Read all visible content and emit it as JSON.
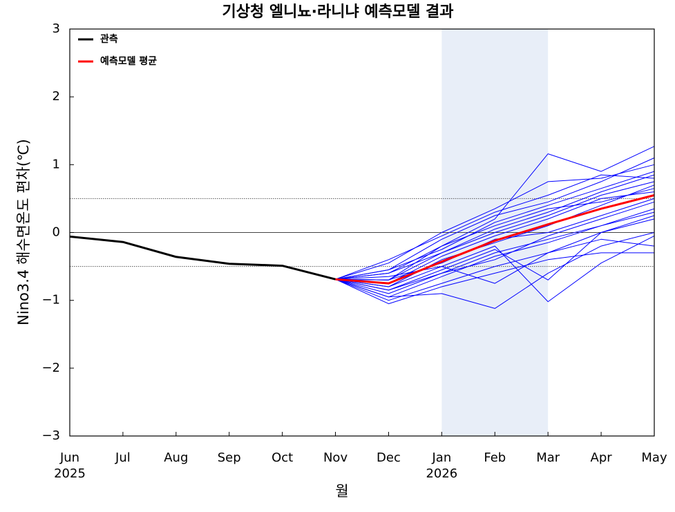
{
  "chart_data": {
    "type": "line",
    "title": "기상청 엘니뇨·라니냐 예측모델 결과",
    "x_label": "월",
    "y_label": "Nino3.4 해수면온도 편차(℃)",
    "categories": [
      "Jun",
      "Jul",
      "Aug",
      "Sep",
      "Oct",
      "Nov",
      "Dec",
      "Jan",
      "Feb",
      "Mar",
      "Apr",
      "May"
    ],
    "year_labels": [
      "2025",
      null,
      null,
      null,
      null,
      null,
      null,
      "2026",
      null,
      null,
      null,
      null
    ],
    "ylim": [
      -3,
      3
    ],
    "yticks": [
      {
        "value": -3,
        "label": "−3"
      },
      {
        "value": -2,
        "label": "−2"
      },
      {
        "value": -1,
        "label": "−1"
      },
      0,
      1,
      2,
      3
    ],
    "hlines": [
      {
        "value": 0,
        "style": "solid"
      },
      {
        "value": 0.5,
        "style": "dotted"
      },
      {
        "value": -0.5,
        "style": "dotted"
      }
    ],
    "shade_range": [
      7,
      9
    ],
    "shade_color": "#e8eef8",
    "legend": "upper left",
    "series": [
      {
        "color": "#0000ff",
        "values": [
          null,
          null,
          null,
          null,
          null,
          -0.69,
          -0.55,
          -0.1,
          0.25,
          0.45,
          0.75,
          1.1
        ]
      },
      {
        "color": "#0000ff",
        "values": [
          null,
          null,
          null,
          null,
          null,
          -0.69,
          -0.85,
          -0.6,
          -0.3,
          -0.1,
          0.1,
          0.3
        ]
      },
      {
        "color": "#0000ff",
        "values": [
          null,
          null,
          null,
          null,
          null,
          -0.69,
          -0.95,
          -0.9,
          -1.12,
          -0.6,
          -0.2,
          0.0
        ]
      },
      {
        "color": "#0000ff",
        "values": [
          null,
          null,
          null,
          null,
          null,
          -0.69,
          -0.7,
          -0.3,
          0.05,
          0.3,
          0.6,
          0.85
        ]
      },
      {
        "color": "#0000ff",
        "values": [
          null,
          null,
          null,
          null,
          null,
          -0.69,
          -0.6,
          -0.2,
          0.2,
          1.16,
          0.9,
          1.27
        ]
      },
      {
        "color": "#0000ff",
        "values": [
          null,
          null,
          null,
          null,
          null,
          -0.69,
          -1.0,
          -0.75,
          -0.5,
          -0.3,
          -0.1,
          -0.2
        ]
      },
      {
        "color": "#0000ff",
        "values": [
          null,
          null,
          null,
          null,
          null,
          -0.69,
          -0.8,
          -0.4,
          -0.15,
          0.1,
          0.4,
          0.7
        ]
      },
      {
        "color": "#0000ff",
        "values": [
          null,
          null,
          null,
          null,
          null,
          -0.69,
          -0.65,
          -0.5,
          -0.2,
          -1.02,
          -0.45,
          -0.05
        ]
      },
      {
        "color": "#0000ff",
        "values": [
          null,
          null,
          null,
          null,
          null,
          -0.69,
          -0.45,
          0.0,
          0.35,
          0.75,
          0.8,
          1.0
        ]
      },
      {
        "color": "#0000ff",
        "values": [
          null,
          null,
          null,
          null,
          null,
          -0.69,
          -0.9,
          -0.6,
          -0.4,
          -0.05,
          0.2,
          0.45
        ]
      },
      {
        "color": "#0000ff",
        "values": [
          null,
          null,
          null,
          null,
          null,
          -0.69,
          -0.75,
          -0.35,
          -0.05,
          0.2,
          0.5,
          0.6
        ]
      },
      {
        "color": "#0000ff",
        "values": [
          null,
          null,
          null,
          null,
          null,
          -0.69,
          -1.05,
          -0.8,
          -0.6,
          -0.4,
          -0.3,
          -0.3
        ]
      },
      {
        "color": "#0000ff",
        "values": [
          null,
          null,
          null,
          null,
          null,
          -0.69,
          -0.55,
          -0.25,
          0.15,
          0.4,
          0.65,
          0.9
        ]
      },
      {
        "color": "#0000ff",
        "values": [
          null,
          null,
          null,
          null,
          null,
          -0.69,
          -0.7,
          -0.45,
          -0.1,
          0.0,
          0.25,
          0.5
        ]
      },
      {
        "color": "#0000ff",
        "values": [
          null,
          null,
          null,
          null,
          null,
          -0.69,
          -0.85,
          -0.55,
          -0.25,
          -0.7,
          0.0,
          0.2
        ]
      },
      {
        "color": "#0000ff",
        "values": [
          null,
          null,
          null,
          null,
          null,
          -0.69,
          -0.4,
          -0.05,
          0.3,
          0.55,
          0.85,
          0.8
        ]
      },
      {
        "color": "#0000ff",
        "values": [
          null,
          null,
          null,
          null,
          null,
          -0.69,
          -0.95,
          -0.65,
          -0.35,
          -0.15,
          0.1,
          0.35
        ]
      },
      {
        "color": "#0000ff",
        "values": [
          null,
          null,
          null,
          null,
          null,
          -0.69,
          -0.6,
          -0.3,
          0.0,
          0.25,
          0.55,
          0.75
        ]
      },
      {
        "color": "#0000ff",
        "values": [
          null,
          null,
          null,
          null,
          null,
          -0.69,
          -0.8,
          -0.5,
          -0.75,
          -0.3,
          0.0,
          0.25
        ]
      },
      {
        "color": "#0000ff",
        "values": [
          null,
          null,
          null,
          null,
          null,
          -0.69,
          -0.7,
          -0.2,
          0.1,
          0.35,
          0.45,
          0.65
        ]
      },
      {
        "name": "관측",
        "color": "#000000",
        "values": [
          -0.06,
          -0.14,
          -0.36,
          -0.46,
          -0.49,
          -0.69,
          null,
          null,
          null,
          null,
          null,
          null
        ]
      },
      {
        "name": "예측모델 평균",
        "color": "#ff0000",
        "values": [
          null,
          null,
          null,
          null,
          null,
          -0.69,
          -0.75,
          -0.43,
          -0.12,
          0.12,
          0.35,
          0.55
        ]
      }
    ]
  }
}
